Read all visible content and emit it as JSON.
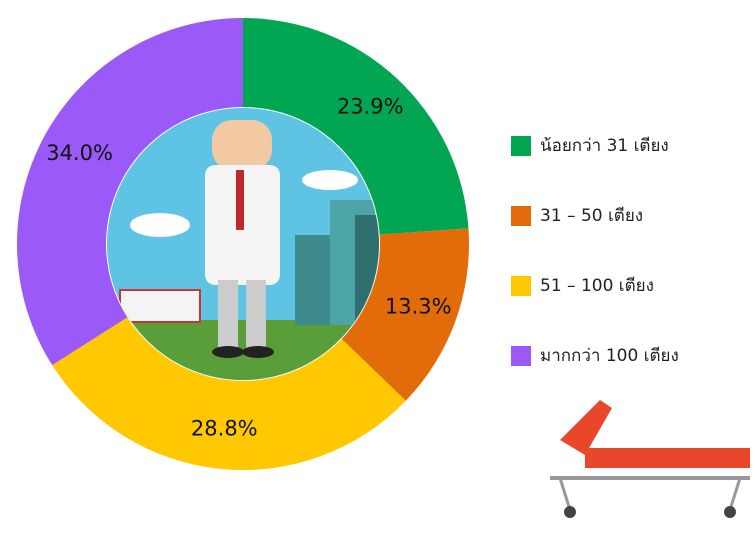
{
  "chart_data": {
    "type": "donut",
    "categories": [
      "น้อยกว่า 31 เตียง",
      "31 – 50 เตียง",
      "51 – 100 เตียง",
      "มากกว่า 100 เตียง"
    ],
    "values": [
      23.9,
      13.3,
      28.8,
      34.0
    ],
    "value_labels": [
      "23.9%",
      "13.3%",
      "28.8%",
      "34.0%"
    ],
    "colors": [
      "#00a651",
      "#e36c0a",
      "#ffc800",
      "#9b59f7"
    ],
    "legend": "right"
  }
}
